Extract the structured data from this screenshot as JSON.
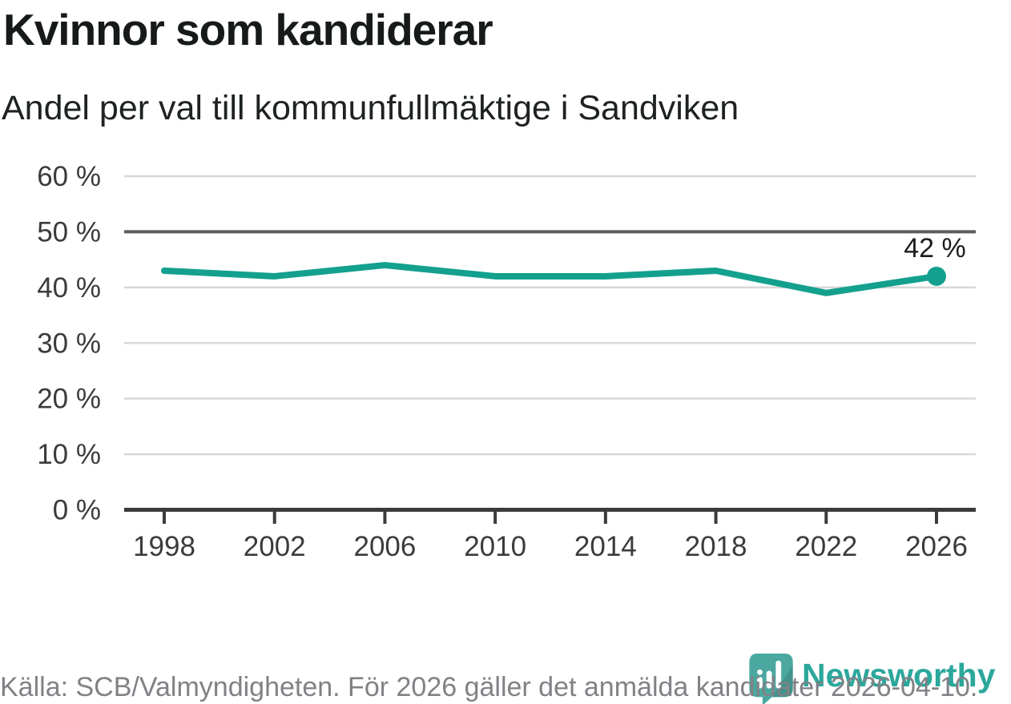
{
  "page": {
    "title": "Kvinnor som kandiderar",
    "subtitle": "Andel per val till kommunfullmäktige i Sandviken",
    "source_note": "Källa: SCB/Valmyndigheten. För 2026 gäller det anmälda kandidater 2026-04-10.",
    "brand_name": "Newsworthy"
  },
  "colors": {
    "line_teal": "#14a08e",
    "brand_teal": "#2ca79b",
    "logo_bubble_teal": "#4ba8a0",
    "grid_light": "#d8d8d8",
    "grid_emphasized": "#5b5c5e",
    "axis": "#3a3b3c",
    "tick_text": "#3a3b3c",
    "label_text": "#1c1c1c",
    "muted_text": "#818186"
  },
  "chart_data": {
    "type": "line",
    "title": "Kvinnor som kandiderar",
    "subtitle": "Andel per val till kommunfullmäktige i Sandviken",
    "x": [
      1998,
      2002,
      2006,
      2010,
      2014,
      2018,
      2022,
      2026
    ],
    "values": [
      43,
      42,
      44,
      42,
      42,
      43,
      39,
      42
    ],
    "xtick_labels": [
      "1998",
      "2002",
      "2006",
      "2010",
      "2014",
      "2018",
      "2022",
      "2026"
    ],
    "ytick_labels": [
      "0 %",
      "10 %",
      "20 %",
      "30 %",
      "40 %",
      "50 %",
      "60 %"
    ],
    "ylim": [
      0,
      60
    ],
    "ytick_step": 10,
    "emphasized_gridline": 50,
    "grid": "horizontal-only",
    "legend": "none",
    "line_color": "#14a08e",
    "end_point_marker": true,
    "point_label": {
      "x": 2026,
      "text": "42 %"
    },
    "source": "Källa: SCB/Valmyndigheten. För 2026 gäller det anmälda kandidater 2026-04-10."
  }
}
